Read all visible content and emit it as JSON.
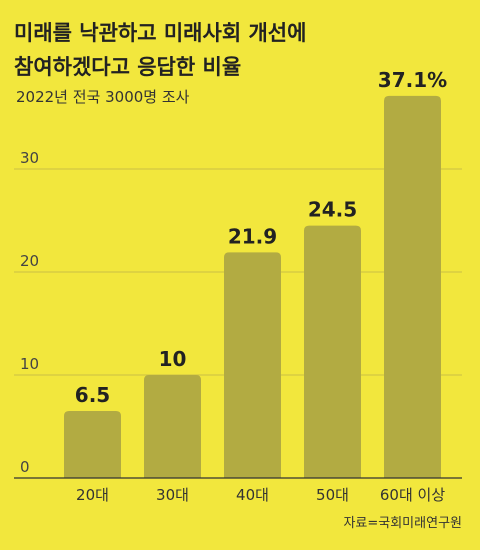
{
  "chart_data": {
    "type": "bar",
    "title_lines": [
      "미래를 낙관하고 미래사회 개선에",
      "참여하겠다고 응답한 비율"
    ],
    "subtitle": "2022년 전국 3000명 조사",
    "categories": [
      "20대",
      "30대",
      "40대",
      "50대",
      "60대 이상"
    ],
    "values": [
      6.5,
      10,
      21.9,
      24.5,
      37.1
    ],
    "data_labels": [
      "6.5",
      "10",
      "21.9",
      "24.5",
      "37.1%"
    ],
    "yticks": [
      0,
      10,
      20,
      30
    ],
    "ylim": [
      0,
      40
    ],
    "grid": true,
    "source": "자료=국회미래연구원",
    "colors": {
      "background": "#f2e73d",
      "bar": "#b2ab42",
      "grid": "#c9bf45",
      "axis": "#333333"
    }
  }
}
